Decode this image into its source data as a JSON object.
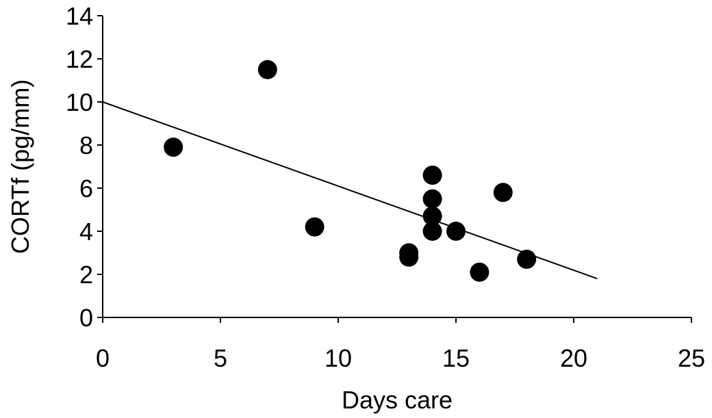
{
  "chart_data": {
    "type": "scatter",
    "xlabel": "Days care",
    "ylabel": "CORTf (pg/mm)",
    "xlim": [
      0,
      25
    ],
    "ylim": [
      0,
      14
    ],
    "xticks": [
      0,
      5,
      10,
      15,
      20,
      25
    ],
    "yticks": [
      0,
      2,
      4,
      6,
      8,
      10,
      12,
      14
    ],
    "grid": false,
    "legend": "none",
    "series": [
      {
        "x": [
          3,
          7,
          9,
          13,
          13,
          14,
          14,
          14,
          14,
          15,
          16,
          17,
          18
        ],
        "y": [
          7.9,
          11.5,
          4.2,
          3.0,
          2.8,
          6.6,
          5.5,
          4.7,
          4.0,
          4.0,
          2.1,
          5.8,
          2.7
        ],
        "color": "#000000"
      }
    ],
    "trendline": {
      "x": [
        0,
        21
      ],
      "y": [
        10.0,
        1.8
      ],
      "color": "#000000"
    }
  }
}
